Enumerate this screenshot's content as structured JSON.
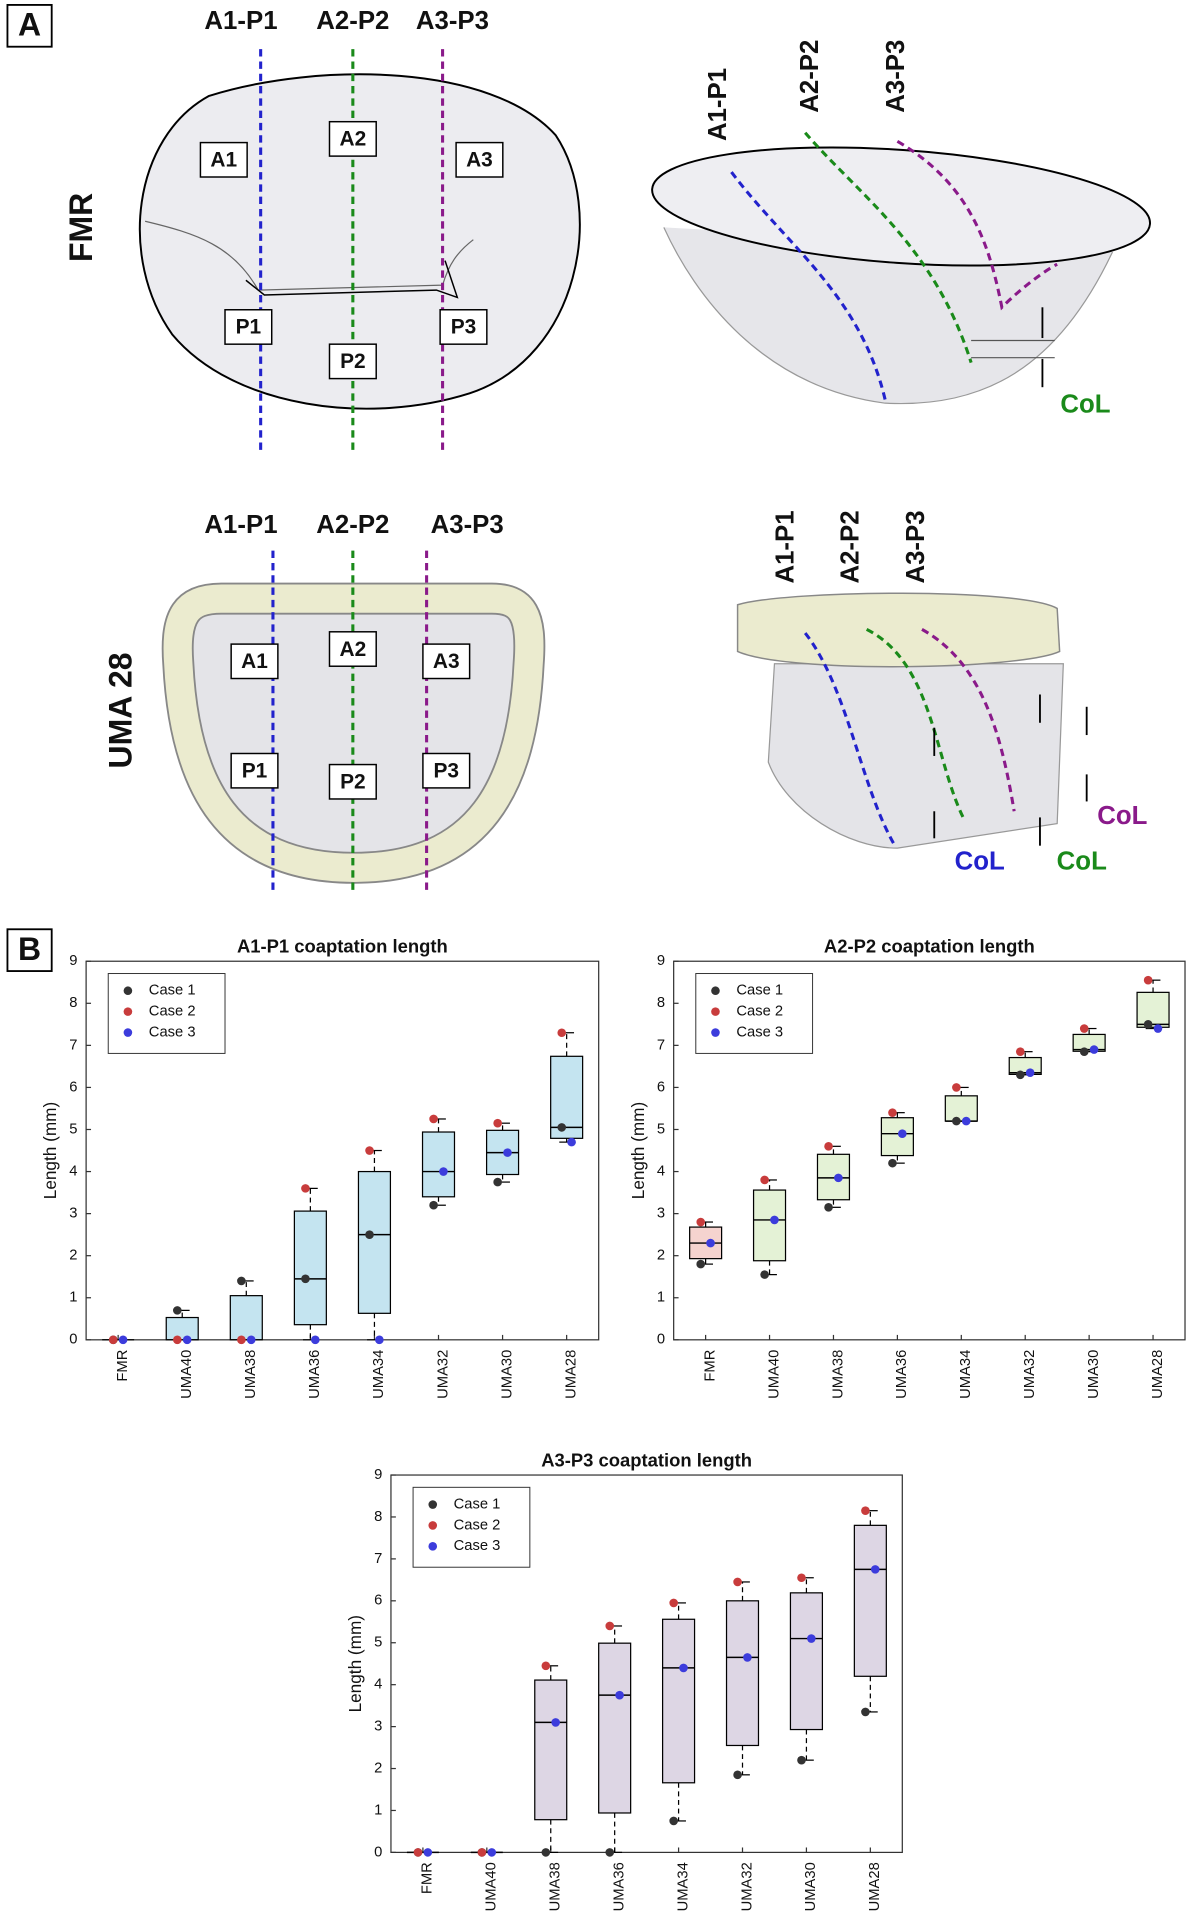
{
  "panel_a": {
    "label": "A",
    "rows": [
      {
        "name": "FMR",
        "top": {
          "lines": [
            "A1-P1",
            "A2-P2",
            "A3-P3"
          ],
          "regions": [
            "A1",
            "A2",
            "A3",
            "P1",
            "P2",
            "P3"
          ]
        },
        "side": {
          "lines": [
            "A1-P1",
            "A2-P2",
            "A3-P3"
          ],
          "col": [
            "CoL"
          ]
        }
      },
      {
        "name": "UMA 28",
        "top": {
          "lines": [
            "A1-P1",
            "A2-P2",
            "A3-P3"
          ],
          "regions": [
            "A1",
            "A2",
            "A3",
            "P1",
            "P2",
            "P3"
          ]
        },
        "side": {
          "lines": [
            "A1-P1",
            "A2-P2",
            "A3-P3"
          ],
          "col": [
            "CoL",
            "CoL",
            "CoL"
          ]
        }
      }
    ]
  },
  "panel_b": {
    "label": "B"
  },
  "chart_data": [
    {
      "type": "box",
      "title": "A1-P1 coaptation length",
      "ylabel": "Length (mm)",
      "categories": [
        "FMR",
        "UMA40",
        "UMA38",
        "UMA36",
        "UMA34",
        "UMA32",
        "UMA30",
        "UMA28"
      ],
      "ylim": [
        0,
        9
      ],
      "yticks": [
        0,
        1,
        2,
        3,
        4,
        5,
        6,
        7,
        8,
        9
      ],
      "legend": "upper left",
      "series": [
        {
          "name": "Case 1",
          "color": "#333333",
          "values": [
            0,
            0.7,
            1.4,
            1.45,
            2.5,
            3.2,
            3.75,
            5.05
          ]
        },
        {
          "name": "Case 2",
          "color": "#c83c3c",
          "values": [
            0,
            0,
            0,
            3.6,
            4.5,
            5.25,
            5.15,
            7.3
          ]
        },
        {
          "name": "Case 3",
          "color": "#3c3cdc",
          "values": [
            0,
            0,
            0,
            0,
            0,
            4.0,
            4.45,
            4.7
          ]
        }
      ],
      "boxes": {
        "q1": [
          0,
          0,
          0,
          0.36,
          0.63,
          3.4,
          3.93,
          4.79
        ],
        "median": [
          0,
          0,
          0,
          1.45,
          2.5,
          4.0,
          4.45,
          5.05
        ],
        "q3": [
          0,
          0.53,
          1.05,
          3.06,
          4.0,
          4.94,
          4.98,
          6.74
        ]
      },
      "box_colors": [
        "#c4e4f0",
        "#c4e4f0",
        "#c4e4f0",
        "#c4e4f0",
        "#c4e4f0",
        "#c4e4f0",
        "#c4e4f0",
        "#c4e4f0"
      ]
    },
    {
      "type": "box",
      "title": "A2-P2 coaptation length",
      "ylabel": "Length (mm)",
      "categories": [
        "FMR",
        "UMA40",
        "UMA38",
        "UMA36",
        "UMA34",
        "UMA32",
        "UMA30",
        "UMA28"
      ],
      "ylim": [
        0,
        9
      ],
      "yticks": [
        0,
        1,
        2,
        3,
        4,
        5,
        6,
        7,
        8,
        9
      ],
      "legend": "upper left",
      "series": [
        {
          "name": "Case 1",
          "color": "#333333",
          "values": [
            1.8,
            1.55,
            3.15,
            4.2,
            5.2,
            6.3,
            6.85,
            7.5
          ]
        },
        {
          "name": "Case 2",
          "color": "#c83c3c",
          "values": [
            2.8,
            3.8,
            4.6,
            5.4,
            6.0,
            6.85,
            7.4,
            8.55
          ]
        },
        {
          "name": "Case 3",
          "color": "#3c3cdc",
          "values": [
            2.3,
            2.85,
            3.85,
            4.9,
            5.2,
            6.35,
            6.9,
            7.4
          ]
        }
      ],
      "boxes": {
        "q1": [
          1.93,
          1.88,
          3.33,
          4.38,
          5.2,
          6.31,
          6.86,
          7.43
        ],
        "median": [
          2.3,
          2.85,
          3.85,
          4.9,
          5.2,
          6.35,
          6.9,
          7.5
        ],
        "q3": [
          2.68,
          3.56,
          4.41,
          5.28,
          5.8,
          6.71,
          7.26,
          8.26
        ]
      },
      "box_colors": [
        "#f5d3cf",
        "#e4f2d6",
        "#e4f2d6",
        "#e4f2d6",
        "#e4f2d6",
        "#e4f2d6",
        "#e4f2d6",
        "#e4f2d6"
      ]
    },
    {
      "type": "box",
      "title": "A3-P3 coaptation length",
      "ylabel": "Length (mm)",
      "categories": [
        "FMR",
        "UMA40",
        "UMA38",
        "UMA36",
        "UMA34",
        "UMA32",
        "UMA30",
        "UMA28"
      ],
      "ylim": [
        0,
        9
      ],
      "yticks": [
        0,
        1,
        2,
        3,
        4,
        5,
        6,
        7,
        8,
        9
      ],
      "legend": "upper left",
      "series": [
        {
          "name": "Case 1",
          "color": "#333333",
          "values": [
            0,
            0,
            0,
            0,
            0.75,
            1.85,
            2.2,
            3.35
          ]
        },
        {
          "name": "Case 2",
          "color": "#c83c3c",
          "values": [
            0,
            0,
            4.45,
            5.4,
            5.95,
            6.45,
            6.55,
            8.15
          ]
        },
        {
          "name": "Case 3",
          "color": "#3c3cdc",
          "values": [
            0,
            0,
            3.1,
            3.75,
            4.4,
            4.65,
            5.1,
            6.75
          ]
        }
      ],
      "boxes": {
        "q1": [
          0,
          0,
          0.78,
          0.94,
          1.66,
          2.55,
          2.93,
          4.2
        ],
        "median": [
          0,
          0,
          3.1,
          3.75,
          4.4,
          4.65,
          5.1,
          6.75
        ],
        "q3": [
          0,
          0,
          4.11,
          4.99,
          5.56,
          6.0,
          6.19,
          7.8
        ]
      },
      "box_colors": [
        "#ddd6e4",
        "#ddd6e4",
        "#ddd6e4",
        "#ddd6e4",
        "#ddd6e4",
        "#ddd6e4",
        "#ddd6e4",
        "#ddd6e4"
      ]
    }
  ]
}
